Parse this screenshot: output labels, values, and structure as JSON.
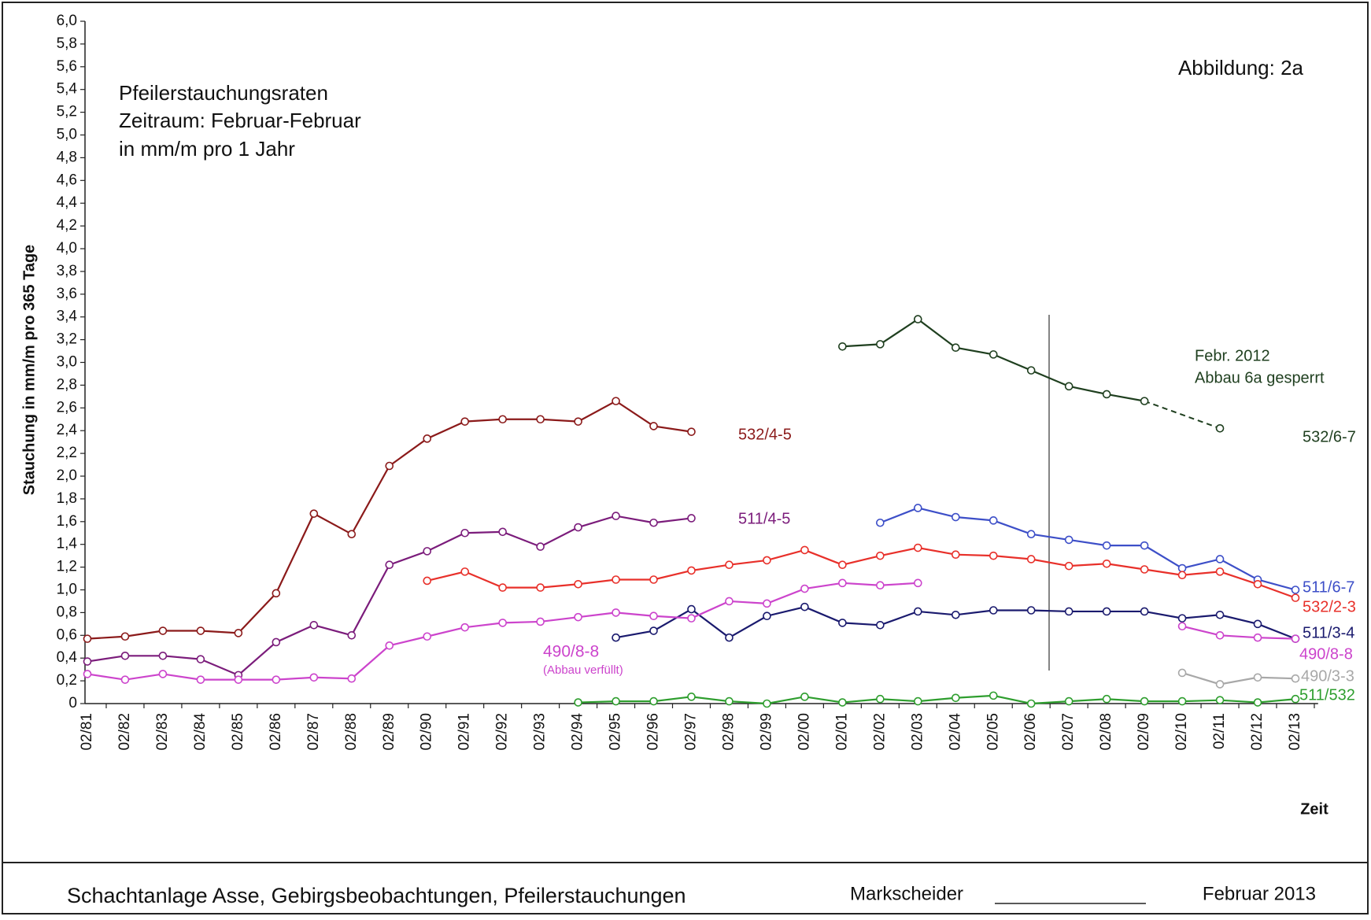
{
  "chart_data": {
    "type": "line",
    "title": [
      "Pfeilerstauchungsraten",
      "Zeitraum: Februar-Februar",
      "in mm/m pro 1 Jahr"
    ],
    "figure_label": "Abbildung:  2a",
    "y_label": "Stauchung in mm/m pro 365 Tage",
    "x_label": "Zeit",
    "categories": [
      "02/81",
      "02/82",
      "02/83",
      "02/84",
      "02/85",
      "02/86",
      "02/87",
      "02/88",
      "02/89",
      "02/90",
      "02/91",
      "02/92",
      "02/93",
      "02/94",
      "02/95",
      "02/96",
      "02/97",
      "02/98",
      "02/99",
      "02/00",
      "02/01",
      "02/02",
      "02/03",
      "02/04",
      "02/05",
      "02/06",
      "02/07",
      "02/08",
      "02/09",
      "02/10",
      "02/11",
      "02/12",
      "02/13"
    ],
    "ylim": [
      0,
      6
    ],
    "yticks": [
      0,
      {
        "value": 0.2,
        "label": "0,2"
      },
      {
        "value": 0.4,
        "label": "0,4"
      },
      {
        "value": 0.6,
        "label": "0,6"
      },
      {
        "value": 0.8,
        "label": "0,8"
      },
      {
        "value": 1,
        "label": "1,0"
      },
      {
        "value": 1.2,
        "label": "1,2"
      },
      {
        "value": 1.4,
        "label": "1,4"
      },
      {
        "value": 1.6,
        "label": "1,6"
      },
      {
        "value": 1.8,
        "label": "1,8"
      },
      {
        "value": 2,
        "label": "2,0"
      },
      {
        "value": 2.2,
        "label": "2,2"
      },
      {
        "value": 2.4,
        "label": "2,4"
      },
      {
        "value": 2.6,
        "label": "2,6"
      },
      {
        "value": 2.8,
        "label": "2,8"
      },
      {
        "value": 3,
        "label": "3,0"
      },
      {
        "value": 3.2,
        "label": "3,2"
      },
      {
        "value": 3.4,
        "label": "3,4"
      },
      {
        "value": 3.6,
        "label": "3,6"
      },
      {
        "value": 3.8,
        "label": "3,8"
      },
      {
        "value": 4,
        "label": "4,0"
      },
      {
        "value": 4.2,
        "label": "4,2"
      },
      {
        "value": 4.4,
        "label": "4,4"
      },
      {
        "value": 4.6,
        "label": "4,6"
      },
      {
        "value": 4.8,
        "label": "4,8"
      },
      {
        "value": 5,
        "label": "5,0"
      },
      {
        "value": 5.2,
        "label": "5,2"
      },
      {
        "value": 5.4,
        "label": "5,4"
      },
      {
        "value": 5.6,
        "label": "5,6"
      },
      {
        "value": 5.8,
        "label": "5,8"
      },
      {
        "value": 6,
        "label": "6,0"
      }
    ],
    "grid": false,
    "series": [
      {
        "name": "532/4-5",
        "color": "#8b1a1a",
        "values": [
          0.57,
          0.59,
          0.64,
          0.64,
          0.62,
          0.97,
          1.67,
          1.49,
          2.09,
          2.33,
          2.48,
          2.5,
          2.5,
          2.48,
          2.66,
          2.44,
          2.39,
          null,
          null,
          null,
          null,
          null,
          null,
          null,
          null,
          null,
          null,
          null,
          null,
          null,
          null,
          null,
          null
        ]
      },
      {
        "name": "511/4-5",
        "color": "#7b1c7b",
        "values": [
          0.37,
          0.42,
          0.42,
          0.39,
          0.25,
          0.54,
          0.69,
          0.6,
          1.22,
          1.34,
          1.5,
          1.51,
          1.38,
          1.55,
          1.65,
          1.59,
          1.63,
          null,
          null,
          null,
          null,
          null,
          null,
          null,
          null,
          null,
          null,
          null,
          null,
          null,
          null,
          null,
          null
        ]
      },
      {
        "name": "532/6-7",
        "color": "#1f3f1f",
        "gap_style": "dashed",
        "values": [
          null,
          null,
          null,
          null,
          null,
          null,
          null,
          null,
          null,
          null,
          null,
          null,
          null,
          null,
          null,
          null,
          null,
          null,
          null,
          null,
          3.14,
          3.16,
          3.38,
          3.13,
          3.07,
          2.93,
          2.79,
          2.72,
          2.66,
          null,
          2.42,
          null,
          null
        ]
      },
      {
        "name": "511/6-7",
        "color": "#3d4fc8",
        "values": [
          null,
          null,
          null,
          null,
          null,
          null,
          null,
          null,
          null,
          null,
          null,
          null,
          null,
          null,
          null,
          null,
          null,
          null,
          null,
          null,
          null,
          1.59,
          1.72,
          1.64,
          1.61,
          1.49,
          1.44,
          1.39,
          1.39,
          1.19,
          1.27,
          1.09,
          1.0
        ]
      },
      {
        "name": "532/2-3",
        "color": "#e8302a",
        "values": [
          null,
          null,
          null,
          null,
          null,
          null,
          null,
          null,
          null,
          1.08,
          1.16,
          1.02,
          1.02,
          1.05,
          1.09,
          1.09,
          1.17,
          1.22,
          1.26,
          1.35,
          1.22,
          1.3,
          1.37,
          1.31,
          1.3,
          1.27,
          1.21,
          1.23,
          1.18,
          1.13,
          1.16,
          1.05,
          0.93
        ]
      },
      {
        "name": "511/3-4",
        "color": "#1a1a6e",
        "values": [
          null,
          null,
          null,
          null,
          null,
          null,
          null,
          null,
          null,
          null,
          null,
          null,
          null,
          null,
          0.58,
          0.64,
          0.83,
          0.58,
          0.77,
          0.85,
          0.71,
          0.69,
          0.81,
          0.78,
          0.82,
          0.82,
          0.81,
          0.81,
          0.81,
          0.75,
          0.78,
          0.7,
          0.57
        ]
      },
      {
        "name": "490/8-8",
        "color": "#cc44cc",
        "values": [
          0.26,
          0.21,
          0.26,
          0.21,
          0.21,
          0.21,
          0.23,
          0.22,
          0.51,
          0.59,
          0.67,
          0.71,
          0.72,
          0.76,
          0.8,
          0.77,
          0.75,
          0.9,
          0.88,
          1.01,
          1.06,
          1.04,
          1.06,
          null,
          null,
          null,
          null,
          null,
          null,
          0.68,
          0.6,
          0.58,
          0.57
        ]
      },
      {
        "name": "490/3-3",
        "color": "#a8a8a8",
        "values": [
          null,
          null,
          null,
          null,
          null,
          null,
          null,
          null,
          null,
          null,
          null,
          null,
          null,
          null,
          null,
          null,
          null,
          null,
          null,
          null,
          null,
          null,
          null,
          null,
          null,
          null,
          null,
          null,
          null,
          0.27,
          0.17,
          0.23,
          0.22
        ]
      },
      {
        "name": "511/532",
        "color": "#2e9e2e",
        "values": [
          null,
          null,
          null,
          null,
          null,
          null,
          null,
          null,
          null,
          null,
          null,
          null,
          null,
          0.01,
          0.02,
          0.02,
          0.06,
          0.02,
          0.0,
          0.06,
          0.01,
          0.04,
          0.02,
          0.05,
          0.07,
          0.0,
          0.02,
          0.04,
          0.02,
          0.02,
          0.03,
          0.01,
          0.04
        ]
      }
    ],
    "annotations": [
      {
        "text": "490/8-8",
        "color": "#cc44cc"
      },
      {
        "text": "(Abbau verfüllt)",
        "color": "#cc44cc"
      },
      {
        "text": "Febr. 2012",
        "color": "#1f3f1f"
      },
      {
        "text": "Abbau 6a gesperrt",
        "color": "#1f3f1f"
      }
    ],
    "footer": {
      "title": "Schachtanlage Asse, Gebirgsbeobachtungen, Pfeilerstauchungen",
      "signer": "Markscheider",
      "date": "Februar 2013"
    }
  }
}
